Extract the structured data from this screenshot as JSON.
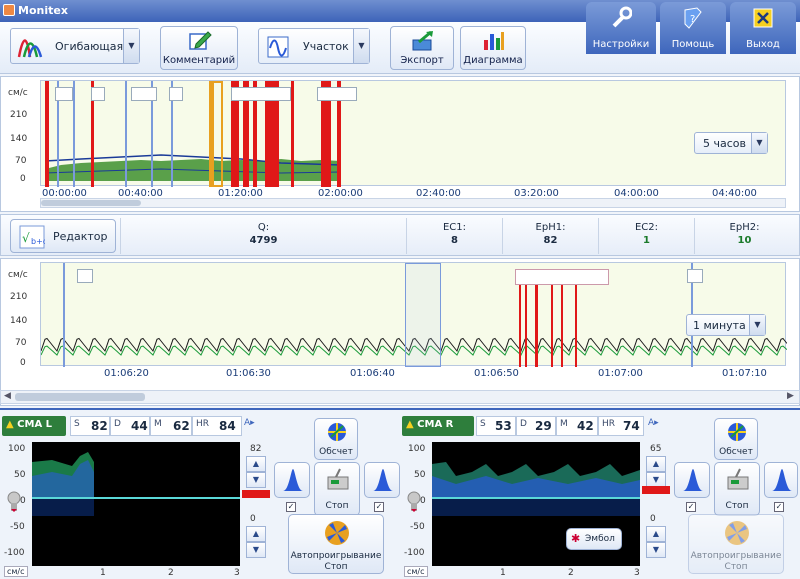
{
  "app": {
    "title": "Monitex"
  },
  "toolbar": {
    "mode_dropdown": "Огибающая",
    "comment_label": "Комментарий",
    "segment_dropdown": "Участок",
    "export_label": "Экспорт",
    "diagram_label": "Диаграмма"
  },
  "tabs": [
    {
      "label": "Настройки",
      "icon": "wrench-icon"
    },
    {
      "label": "Помощь",
      "icon": "help-book-icon"
    },
    {
      "label": "Выход",
      "icon": "exit-icon"
    }
  ],
  "overview": {
    "unit": "см/с",
    "y_ticks": [
      "210",
      "140",
      "70",
      "0"
    ],
    "x_ticks": [
      "00:00:00",
      "00:40:00",
      "01:20:00",
      "02:00:00",
      "02:40:00",
      "03:20:00",
      "04:00:00",
      "04:40:00"
    ],
    "range": "5 часов"
  },
  "stats": {
    "editor_label": "Редактор",
    "items": [
      {
        "k": "Q:",
        "v": "4799",
        "color": "#1a2a40"
      },
      {
        "k": "EC1:",
        "v": "8",
        "color": "#1a2a40"
      },
      {
        "k": "EpH1:",
        "v": "82",
        "color": "#1a2a40"
      },
      {
        "k": "EC2:",
        "v": "1",
        "color": "#1a7a2a"
      },
      {
        "k": "EpH2:",
        "v": "10",
        "color": "#1a7a2a"
      }
    ]
  },
  "detail": {
    "unit": "см/с",
    "y_ticks": [
      "210",
      "140",
      "70",
      "0"
    ],
    "x_ticks": [
      "01:06:20",
      "01:06:30",
      "01:06:40",
      "01:06:50",
      "01:07:00",
      "01:07:10"
    ],
    "range": "1 минута"
  },
  "channels": [
    {
      "name": "CMA L",
      "S": "82",
      "D": "44",
      "M": "62",
      "HR": "84",
      "y_ticks": [
        "100",
        "50",
        "0",
        "-50",
        "-100"
      ],
      "x_ticks": [
        "1",
        "2",
        "3"
      ],
      "unit": "см/с",
      "spin_top": "82",
      "spin_bottom": "0",
      "recalc_label": "Обсчет",
      "stop_label": "Стоп",
      "autoplay_label": "Автопроигрывание\nСтоп",
      "autoplay_line1": "Автопроигрывание",
      "autoplay_line2": "Стоп"
    },
    {
      "name": "CMA R",
      "S": "53",
      "D": "29",
      "M": "42",
      "HR": "74",
      "y_ticks": [
        "100",
        "50",
        "0",
        "-50",
        "-100"
      ],
      "x_ticks": [
        "1",
        "2",
        "3"
      ],
      "unit": "см/с",
      "spin_top": "65",
      "spin_bottom": "0",
      "recalc_label": "Обсчет",
      "stop_label": "Стоп",
      "embol_label": "Эмбол",
      "autoplay_line1": "Автопроигрывание",
      "autoplay_line2": "Стоп"
    }
  ],
  "labels": {
    "S": "S",
    "D": "D",
    "M": "M",
    "HR": "HR"
  }
}
